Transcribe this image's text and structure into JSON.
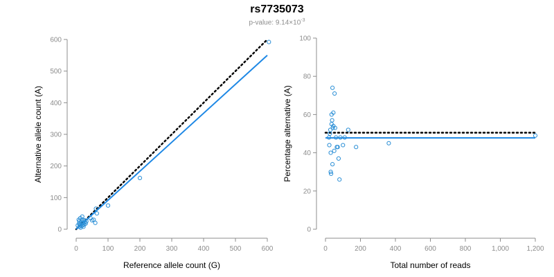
{
  "header": {
    "title": "rs7735073",
    "pvalue_prefix": "p-value: 9.14×10",
    "pvalue_exponent": "-3"
  },
  "colors": {
    "points": "#2b8fd6",
    "fit_line": "#1e88e5",
    "expected_line": "#000000",
    "axis": "#8c8c8c"
  },
  "chart_data": [
    {
      "type": "scatter",
      "name": "left",
      "xlabel": "Reference allele count (G)",
      "ylabel": "Alternative allele count (A)",
      "xlim": [
        0,
        600
      ],
      "ylim": [
        0,
        600
      ],
      "xticks": [
        "0",
        "100",
        "200",
        "300",
        "400",
        "500",
        "600"
      ],
      "yticks": [
        "0",
        "100",
        "200",
        "300",
        "400",
        "500",
        "600"
      ],
      "points": [
        [
          5,
          12
        ],
        [
          8,
          30
        ],
        [
          9,
          18
        ],
        [
          10,
          8
        ],
        [
          10,
          25
        ],
        [
          12,
          14
        ],
        [
          13,
          35
        ],
        [
          14,
          5
        ],
        [
          15,
          22
        ],
        [
          16,
          10
        ],
        [
          17,
          28
        ],
        [
          18,
          18
        ],
        [
          19,
          40
        ],
        [
          20,
          12
        ],
        [
          21,
          30
        ],
        [
          22,
          20
        ],
        [
          23,
          8
        ],
        [
          25,
          15
        ],
        [
          26,
          28
        ],
        [
          28,
          22
        ],
        [
          30,
          18
        ],
        [
          32,
          25
        ],
        [
          45,
          35
        ],
        [
          50,
          28
        ],
        [
          55,
          30
        ],
        [
          60,
          20
        ],
        [
          62,
          65
        ],
        [
          65,
          50
        ],
        [
          100,
          75
        ],
        [
          200,
          162
        ],
        [
          605,
          592
        ]
      ],
      "fit_line": {
        "x": [
          0,
          600
        ],
        "y": [
          0,
          550
        ]
      },
      "expected_line": {
        "x": [
          0,
          600
        ],
        "y": [
          0,
          600
        ]
      }
    },
    {
      "type": "scatter",
      "name": "right",
      "xlabel": "Total number of reads",
      "ylabel": "Percentage alternative (A)",
      "xlim": [
        0,
        1200
      ],
      "ylim": [
        0,
        100
      ],
      "xticks": [
        "0",
        "200",
        "400",
        "600",
        "800",
        "1,000",
        "1,200"
      ],
      "yticks": [
        "0",
        "20",
        "40",
        "60",
        "80",
        "100"
      ],
      "points": [
        [
          20,
          48
        ],
        [
          22,
          44
        ],
        [
          25,
          50
        ],
        [
          28,
          52
        ],
        [
          30,
          40
        ],
        [
          30,
          30
        ],
        [
          32,
          29
        ],
        [
          35,
          55
        ],
        [
          35,
          60
        ],
        [
          38,
          57
        ],
        [
          40,
          34
        ],
        [
          40,
          74
        ],
        [
          42,
          53
        ],
        [
          45,
          54
        ],
        [
          45,
          61
        ],
        [
          50,
          41
        ],
        [
          52,
          71
        ],
        [
          55,
          53
        ],
        [
          60,
          48
        ],
        [
          65,
          43
        ],
        [
          70,
          43
        ],
        [
          75,
          37
        ],
        [
          80,
          26
        ],
        [
          85,
          48
        ],
        [
          100,
          44
        ],
        [
          110,
          48
        ],
        [
          130,
          52
        ],
        [
          175,
          43
        ],
        [
          362,
          45
        ],
        [
          1200,
          49
        ]
      ],
      "fit_line": {
        "x": [
          0,
          1200
        ],
        "y": [
          47.8,
          47.8
        ]
      },
      "expected_line": {
        "x": [
          0,
          1200
        ],
        "y": [
          50.5,
          50.5
        ]
      }
    }
  ]
}
